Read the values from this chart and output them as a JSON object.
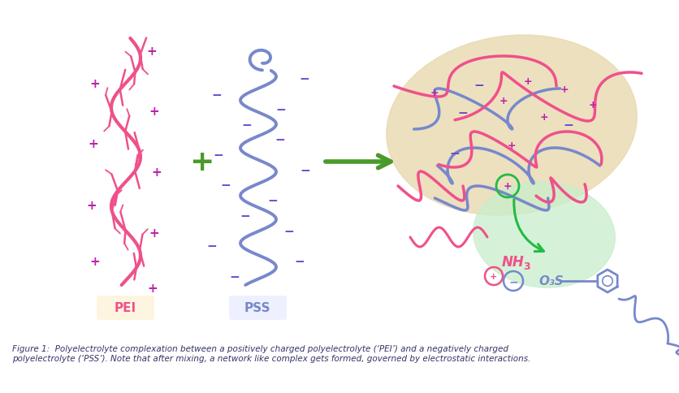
{
  "background_color": "#ffffff",
  "pei_color": "#f0508a",
  "pss_color": "#7788cc",
  "plus_color": "#bb22aa",
  "minus_color": "#6644cc",
  "arrow_color": "#4a9a2a",
  "green_plus_color": "#4a9a2a",
  "complex_blob_tan": "#e8d9b0",
  "complex_blob_green": "#c8eecc",
  "label_pei_bg": "#fdf5e0",
  "label_pss_bg": "#eef0ff",
  "caption_color": "#333366",
  "caption_text": "Figure 1:  Polyelectrolyte complexation between a positively charged polyelectrolyte (‘PEI’) and a negatively charged\npolyelectrolyte (‘PSS’). Note that after mixing, a network like complex gets formed, governed by electrostatic interactions.",
  "pei_label": "PEI",
  "pss_label": "PSS",
  "figsize": [
    8.36,
    4.85
  ],
  "dpi": 100
}
